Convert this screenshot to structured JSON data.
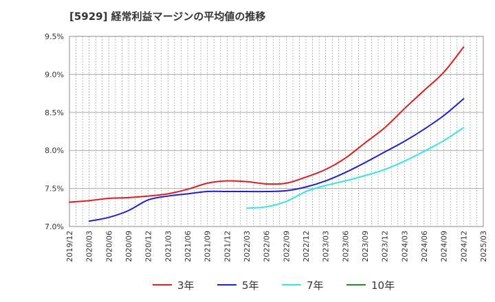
{
  "title": "[5929]  経常利益マージンの平均値の推移",
  "chart_data": {
    "type": "line",
    "title": "[5929]  経常利益マージンの平均値の推移",
    "xlabel": "",
    "ylabel": "",
    "x": [
      "2019/12",
      "2020/03",
      "2020/06",
      "2020/09",
      "2020/12",
      "2021/03",
      "2021/06",
      "2021/09",
      "2021/12",
      "2022/03",
      "2022/06",
      "2022/09",
      "2022/12",
      "2023/03",
      "2023/06",
      "2023/09",
      "2023/12",
      "2024/03",
      "2024/06",
      "2024/09",
      "2024/12",
      "2025/03"
    ],
    "ylim": [
      7.0,
      9.5
    ],
    "yticks": [
      "7.0%",
      "7.5%",
      "8.0%",
      "8.5%",
      "9.0%",
      "9.5%"
    ],
    "grid": true,
    "legend_position": "bottom",
    "series": [
      {
        "name": "3年",
        "color": "#e31a1c",
        "values": [
          7.32,
          7.34,
          7.37,
          7.38,
          7.4,
          7.43,
          7.49,
          7.57,
          7.6,
          7.59,
          7.56,
          7.57,
          7.65,
          7.75,
          7.9,
          8.1,
          8.3,
          8.55,
          8.79,
          9.03,
          9.36,
          null
        ]
      },
      {
        "name": "5年",
        "color": "#1f1fcf",
        "values": [
          null,
          7.07,
          7.12,
          7.21,
          7.35,
          7.4,
          7.43,
          7.46,
          7.46,
          7.46,
          7.46,
          7.47,
          7.52,
          7.6,
          7.71,
          7.84,
          7.98,
          8.12,
          8.28,
          8.46,
          8.68,
          null
        ]
      },
      {
        "name": "7年",
        "color": "#33e5e5",
        "values": [
          null,
          null,
          null,
          null,
          null,
          null,
          null,
          null,
          null,
          7.24,
          7.26,
          7.33,
          7.46,
          7.54,
          7.6,
          7.67,
          7.75,
          7.86,
          7.99,
          8.13,
          8.3,
          null
        ]
      },
      {
        "name": "10年",
        "color": "#228b22",
        "values": [
          null,
          null,
          null,
          null,
          null,
          null,
          null,
          null,
          null,
          null,
          null,
          null,
          null,
          null,
          null,
          null,
          null,
          null,
          null,
          null,
          null,
          null
        ]
      }
    ]
  }
}
